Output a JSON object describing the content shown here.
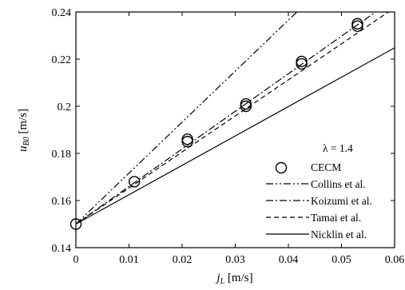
{
  "chart_data": {
    "type": "scatter",
    "title": "",
    "xlabel": "j_L [m/s]",
    "ylabel": "u_B0 [m/s]",
    "xlim": [
      0,
      0.06
    ],
    "ylim": [
      0.14,
      0.24
    ],
    "x_ticks": [
      0,
      0.01,
      0.02,
      0.03,
      0.04,
      0.05,
      0.06
    ],
    "x_tick_labels": [
      "0",
      "0.01",
      "0.02",
      "0.03",
      "0.04",
      "0.05",
      "0.06"
    ],
    "y_ticks": [
      0.14,
      0.16,
      0.18,
      0.2,
      0.22,
      0.24
    ],
    "y_tick_labels": [
      "0.14",
      "0.16",
      "0.18",
      "0.2",
      "0.22",
      "0.24"
    ],
    "grid": false,
    "annotation": "λ = 1.4",
    "legend_position": "bottom-right",
    "series": [
      {
        "name": "CECM",
        "kind": "markers",
        "marker": "open-circle",
        "points": [
          [
            0,
            0.15
          ],
          [
            0.011,
            0.168
          ],
          [
            0.021,
            0.185
          ],
          [
            0.021,
            0.186
          ],
          [
            0.032,
            0.2
          ],
          [
            0.032,
            0.201
          ],
          [
            0.0425,
            0.218
          ],
          [
            0.0425,
            0.219
          ],
          [
            0.053,
            0.234
          ],
          [
            0.053,
            0.235
          ]
        ]
      },
      {
        "name": "Collins et al.",
        "kind": "line",
        "dash": "dash-dot-dot",
        "x": [
          0,
          0.06
        ],
        "y": [
          0.15,
          0.2798
        ]
      },
      {
        "name": "Koizumi et al.",
        "kind": "line",
        "dash": "dash-dot",
        "x": [
          0,
          0.06
        ],
        "y": [
          0.15,
          0.2457
        ]
      },
      {
        "name": "Tamai et al.",
        "kind": "line",
        "dash": "dash",
        "x": [
          0,
          0.06
        ],
        "y": [
          0.15,
          0.2418
        ]
      },
      {
        "name": "Nicklin et al.",
        "kind": "line",
        "dash": "solid",
        "x": [
          0,
          0.06
        ],
        "y": [
          0.15,
          0.2248
        ]
      }
    ]
  }
}
